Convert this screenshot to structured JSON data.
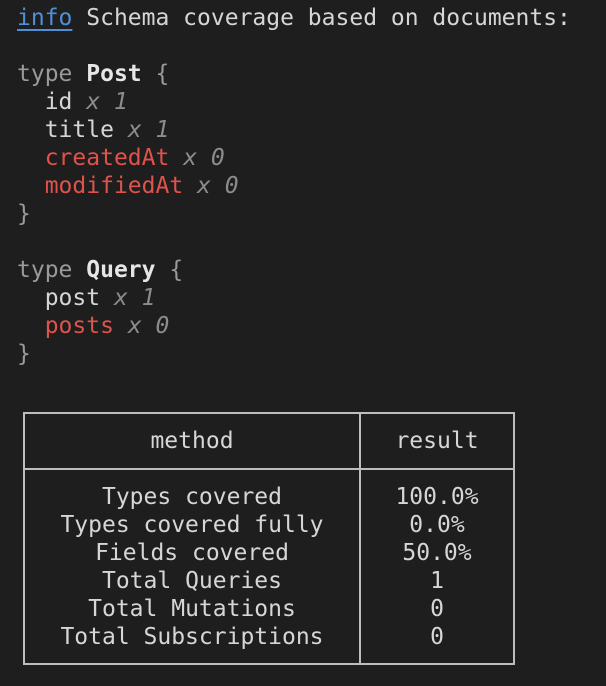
{
  "info_line": {
    "tag": "info",
    "message": "Schema coverage based on documents:"
  },
  "types": [
    {
      "keyword": "type",
      "name": "Post",
      "fields": [
        {
          "name": "id",
          "count": "x 1",
          "covered": true
        },
        {
          "name": "title",
          "count": "x 1",
          "covered": true
        },
        {
          "name": "createdAt",
          "count": "x 0",
          "covered": false
        },
        {
          "name": "modifiedAt",
          "count": "x 0",
          "covered": false
        }
      ]
    },
    {
      "keyword": "type",
      "name": "Query",
      "fields": [
        {
          "name": "post",
          "count": "x 1",
          "covered": true
        },
        {
          "name": "posts",
          "count": "x 0",
          "covered": false
        }
      ]
    }
  ],
  "table": {
    "headers": [
      "method",
      "result"
    ],
    "rows": [
      [
        "Types covered",
        "100.0%"
      ],
      [
        "Types covered fully",
        "0.0%"
      ],
      [
        "Fields covered",
        "50.0%"
      ],
      [
        "Total Queries",
        "1"
      ],
      [
        "Total Mutations",
        "0"
      ],
      [
        "Total Subscriptions",
        "0"
      ]
    ]
  },
  "colors": {
    "background": "#1e1e1e",
    "uncovered": "#e0524a",
    "info": "#4f8fd8"
  }
}
